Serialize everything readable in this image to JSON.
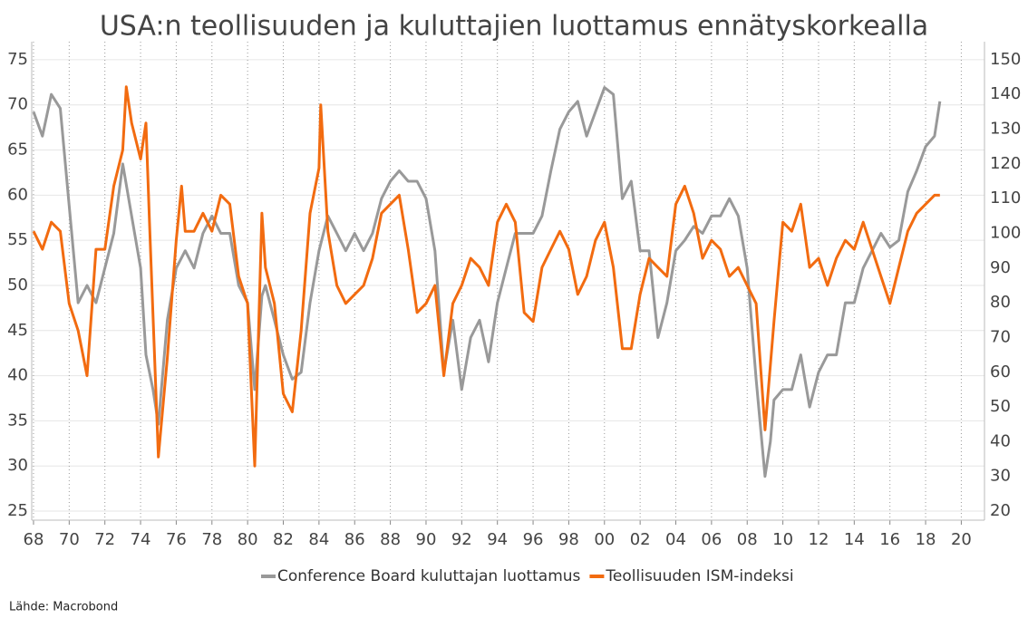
{
  "chart_data": {
    "type": "line",
    "title": "USA:n teollisuuden ja kuluttajien luottamus ennätyskorkealla",
    "source": "Lähde: Macrobond",
    "xlim": [
      1967.9,
      2021.3
    ],
    "xticks": [
      {
        "value": 1968,
        "label": "68"
      },
      {
        "value": 1970,
        "label": "70"
      },
      {
        "value": 1972,
        "label": "72"
      },
      {
        "value": 1974,
        "label": "74"
      },
      {
        "value": 1976,
        "label": "76"
      },
      {
        "value": 1978,
        "label": "78"
      },
      {
        "value": 1980,
        "label": "80"
      },
      {
        "value": 1982,
        "label": "82"
      },
      {
        "value": 1984,
        "label": "84"
      },
      {
        "value": 1986,
        "label": "86"
      },
      {
        "value": 1988,
        "label": "88"
      },
      {
        "value": 1990,
        "label": "90"
      },
      {
        "value": 1992,
        "label": "92"
      },
      {
        "value": 1994,
        "label": "94"
      },
      {
        "value": 1996,
        "label": "96"
      },
      {
        "value": 1998,
        "label": "98"
      },
      {
        "value": 2000,
        "label": "00"
      },
      {
        "value": 2002,
        "label": "02"
      },
      {
        "value": 2004,
        "label": "04"
      },
      {
        "value": 2006,
        "label": "06"
      },
      {
        "value": 2008,
        "label": "08"
      },
      {
        "value": 2010,
        "label": "10"
      },
      {
        "value": 2012,
        "label": "12"
      },
      {
        "value": 2014,
        "label": "14"
      },
      {
        "value": 2016,
        "label": "16"
      },
      {
        "value": 2018,
        "label": "18"
      },
      {
        "value": 2020,
        "label": "20"
      }
    ],
    "ylim": [
      24,
      77
    ],
    "yticks": [
      25,
      30,
      35,
      40,
      45,
      50,
      55,
      60,
      65,
      70,
      75
    ],
    "y2lim": [
      17.4,
      155.2
    ],
    "y2ticks": [
      20,
      30,
      40,
      50,
      60,
      70,
      80,
      90,
      100,
      110,
      120,
      130,
      140,
      150
    ],
    "grid": true,
    "legend": "bottom",
    "series": [
      {
        "name": "Conference Board kuluttajan luottamus",
        "color": "#999999",
        "axis": "y2",
        "x": [
          1968.0,
          1968.5,
          1969.0,
          1969.5,
          1970.0,
          1970.5,
          1971.0,
          1971.5,
          1972.0,
          1972.5,
          1973.0,
          1973.5,
          1974.0,
          1974.3,
          1974.7,
          1975.0,
          1975.5,
          1976.0,
          1976.5,
          1977.0,
          1977.5,
          1978.0,
          1978.5,
          1979.0,
          1979.5,
          1980.0,
          1980.4,
          1980.8,
          1981.0,
          1981.5,
          1982.0,
          1982.5,
          1983.0,
          1983.5,
          1984.0,
          1984.5,
          1985.0,
          1985.5,
          1986.0,
          1986.5,
          1987.0,
          1987.5,
          1988.0,
          1988.5,
          1989.0,
          1989.5,
          1990.0,
          1990.5,
          1991.0,
          1991.5,
          1992.0,
          1992.5,
          1993.0,
          1993.5,
          1994.0,
          1994.5,
          1995.0,
          1995.5,
          1996.0,
          1996.5,
          1997.0,
          1997.5,
          1998.0,
          1998.5,
          1999.0,
          1999.5,
          2000.0,
          2000.5,
          2001.0,
          2001.5,
          2002.0,
          2002.5,
          2003.0,
          2003.5,
          2004.0,
          2004.5,
          2005.0,
          2005.5,
          2006.0,
          2006.5,
          2007.0,
          2007.5,
          2008.0,
          2008.5,
          2009.0,
          2009.3,
          2009.5,
          2010.0,
          2010.5,
          2011.0,
          2011.5,
          2012.0,
          2012.5,
          2013.0,
          2013.5,
          2014.0,
          2014.5,
          2015.0,
          2015.5,
          2016.0,
          2016.5,
          2017.0,
          2017.5,
          2018.0,
          2018.5,
          2018.8
        ],
        "values": [
          135,
          128,
          140,
          136,
          108,
          80,
          85,
          80,
          90,
          100,
          120,
          105,
          90,
          65,
          55,
          45,
          75,
          90,
          95,
          90,
          100,
          105,
          100,
          100,
          85,
          80,
          55,
          82,
          85,
          75,
          65,
          58,
          60,
          80,
          95,
          105,
          100,
          95,
          100,
          95,
          100,
          110,
          115,
          118,
          115,
          115,
          110,
          95,
          60,
          75,
          55,
          70,
          75,
          63,
          80,
          90,
          100,
          100,
          100,
          105,
          118,
          130,
          135,
          138,
          128,
          135,
          142,
          140,
          110,
          115,
          95,
          95,
          70,
          80,
          95,
          98,
          102,
          100,
          105,
          105,
          110,
          105,
          90,
          58,
          30,
          40,
          52,
          55,
          55,
          65,
          50,
          60,
          65,
          65,
          80,
          80,
          90,
          95,
          100,
          96,
          98,
          112,
          118,
          125,
          128,
          138
        ]
      },
      {
        "name": "Teollisuuden ISM-indeksi",
        "color": "#f26b10",
        "x": [
          1968.0,
          1968.5,
          1969.0,
          1969.5,
          1970.0,
          1970.5,
          1971.0,
          1971.5,
          1972.0,
          1972.5,
          1973.0,
          1973.2,
          1973.5,
          1974.0,
          1974.3,
          1974.5,
          1975.0,
          1975.5,
          1976.0,
          1976.3,
          1976.5,
          1977.0,
          1977.5,
          1978.0,
          1978.5,
          1979.0,
          1979.5,
          1980.0,
          1980.4,
          1980.8,
          1981.0,
          1981.5,
          1982.0,
          1982.5,
          1983.0,
          1983.5,
          1984.0,
          1984.1,
          1984.5,
          1985.0,
          1985.5,
          1986.0,
          1986.5,
          1987.0,
          1987.5,
          1988.0,
          1988.5,
          1989.0,
          1989.5,
          1990.0,
          1990.5,
          1991.0,
          1991.5,
          1992.0,
          1992.5,
          1993.0,
          1993.5,
          1994.0,
          1994.5,
          1995.0,
          1995.5,
          1996.0,
          1996.5,
          1997.0,
          1997.5,
          1998.0,
          1998.5,
          1999.0,
          1999.5,
          2000.0,
          2000.5,
          2001.0,
          2001.5,
          2002.0,
          2002.5,
          2003.0,
          2003.5,
          2004.0,
          2004.5,
          2005.0,
          2005.5,
          2006.0,
          2006.5,
          2007.0,
          2007.5,
          2008.0,
          2008.5,
          2009.0,
          2009.5,
          2010.0,
          2010.5,
          2011.0,
          2011.5,
          2012.0,
          2012.5,
          2013.0,
          2013.5,
          2014.0,
          2014.5,
          2015.0,
          2015.5,
          2016.0,
          2016.5,
          2017.0,
          2017.5,
          2018.0,
          2018.5,
          2018.8
        ],
        "values": [
          56,
          54,
          57,
          56,
          48,
          45,
          40,
          54,
          54,
          61,
          65,
          72,
          68,
          64,
          68,
          57,
          31,
          42,
          55,
          61,
          56,
          56,
          58,
          56,
          60,
          59,
          51,
          48,
          30,
          58,
          52,
          48,
          38,
          36,
          45,
          58,
          63,
          70,
          56,
          50,
          48,
          49,
          50,
          53,
          58,
          59,
          60,
          54,
          47,
          48,
          50,
          40,
          48,
          50,
          53,
          52,
          50,
          57,
          59,
          57,
          47,
          46,
          52,
          54,
          56,
          54,
          49,
          51,
          55,
          57,
          52,
          43,
          43,
          49,
          53,
          52,
          51,
          59,
          61,
          58,
          53,
          55,
          54,
          51,
          52,
          50,
          48,
          34,
          46,
          57,
          56,
          59,
          52,
          53,
          50,
          53,
          55,
          54,
          57,
          54,
          51,
          48,
          52,
          56,
          58,
          59,
          60,
          60
        ]
      }
    ]
  }
}
